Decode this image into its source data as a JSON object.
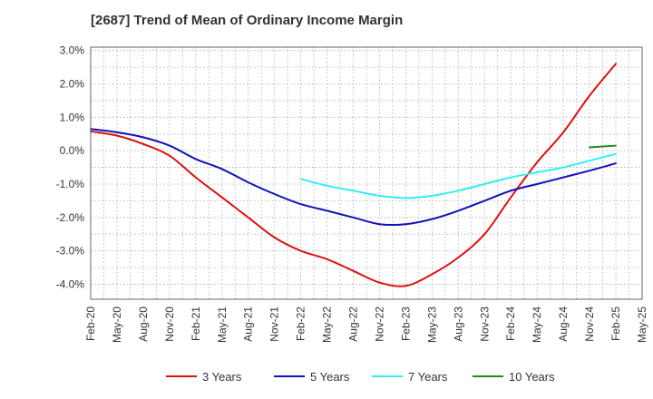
{
  "chart_data": {
    "type": "line",
    "title": "[2687]  Trend of Mean of Ordinary Income Margin",
    "x_tick_labels": [
      "Feb-20",
      "May-20",
      "Aug-20",
      "Nov-20",
      "Feb-21",
      "May-21",
      "Aug-21",
      "Nov-21",
      "Feb-22",
      "May-22",
      "Aug-22",
      "Nov-22",
      "Feb-23",
      "May-23",
      "Aug-23",
      "Nov-23",
      "Feb-24",
      "May-24",
      "Aug-24",
      "Nov-24",
      "Feb-25",
      "May-25"
    ],
    "y_ticks": [
      3.0,
      2.0,
      1.0,
      0.0,
      -1.0,
      -2.0,
      -3.0,
      -4.0
    ],
    "y_tick_labels": [
      "3.0%",
      "2.0%",
      "1.0%",
      "0.0%",
      "-1.0%",
      "-2.0%",
      "-3.0%",
      "-4.0%"
    ],
    "ylim": [
      -4.45,
      3.1
    ],
    "grid": true,
    "legend_position": "bottom",
    "series": [
      {
        "name": "3 Years",
        "color": "#dd1111",
        "x": [
          "Feb-20",
          "May-20",
          "Aug-20",
          "Nov-20",
          "Feb-21",
          "May-21",
          "Aug-21",
          "Nov-21",
          "Feb-22",
          "May-22",
          "Aug-22",
          "Nov-22",
          "Feb-23",
          "May-23",
          "Aug-23",
          "Nov-23",
          "Feb-24",
          "May-24",
          "Aug-24",
          "Nov-24",
          "Feb-25"
        ],
        "values": [
          0.58,
          0.45,
          0.2,
          -0.15,
          -0.8,
          -1.4,
          -2.0,
          -2.6,
          -3.0,
          -3.25,
          -3.6,
          -3.95,
          -4.05,
          -3.7,
          -3.2,
          -2.5,
          -1.4,
          -0.35,
          0.55,
          1.65,
          2.6
        ]
      },
      {
        "name": "5 Years",
        "color": "#1111bb",
        "x": [
          "Feb-20",
          "May-20",
          "Aug-20",
          "Nov-20",
          "Feb-21",
          "May-21",
          "Aug-21",
          "Nov-21",
          "Feb-22",
          "May-22",
          "Aug-22",
          "Nov-22",
          "Feb-23",
          "May-23",
          "Aug-23",
          "Nov-23",
          "Feb-24",
          "May-24",
          "Aug-24",
          "Nov-24",
          "Feb-25"
        ],
        "values": [
          0.65,
          0.55,
          0.4,
          0.15,
          -0.25,
          -0.55,
          -0.95,
          -1.3,
          -1.6,
          -1.8,
          -2.0,
          -2.2,
          -2.2,
          -2.05,
          -1.8,
          -1.5,
          -1.2,
          -1.0,
          -0.8,
          -0.6,
          -0.38
        ]
      },
      {
        "name": "7 Years",
        "color": "#33eeee",
        "x": [
          "Feb-22",
          "May-22",
          "Aug-22",
          "Nov-22",
          "Feb-23",
          "May-23",
          "Aug-23",
          "Nov-23",
          "Feb-24",
          "May-24",
          "Aug-24",
          "Nov-24",
          "Feb-25"
        ],
        "values": [
          -0.85,
          -1.05,
          -1.2,
          -1.35,
          -1.42,
          -1.35,
          -1.2,
          -1.0,
          -0.8,
          -0.65,
          -0.5,
          -0.3,
          -0.1
        ]
      },
      {
        "name": "10 Years",
        "color": "#228822",
        "x": [
          "Nov-24",
          "Feb-25"
        ],
        "values": [
          0.1,
          0.15
        ]
      }
    ]
  }
}
